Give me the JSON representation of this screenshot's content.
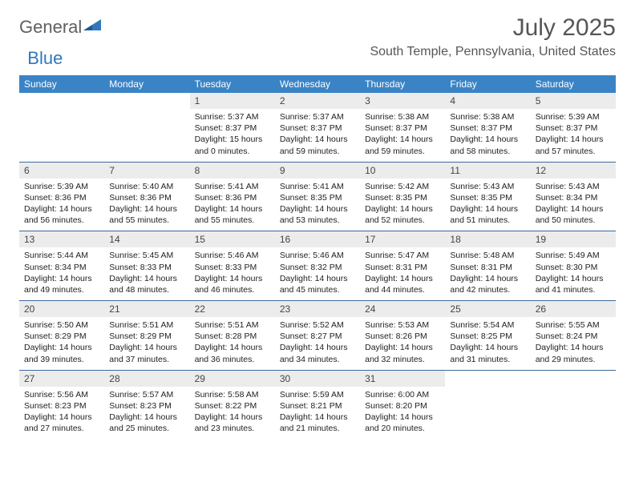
{
  "branding": {
    "logo_general": "General",
    "logo_blue": "Blue",
    "triangle_color": "#2f78bd"
  },
  "header": {
    "month_title": "July 2025",
    "location": "South Temple, Pennsylvania, United States"
  },
  "styling": {
    "header_row_bg": "#3a84c6",
    "header_row_text": "#ffffff",
    "daynum_bg": "#ececec",
    "daynum_text": "#444444",
    "body_text": "#222222",
    "row_border": "#3a6a9a",
    "page_bg": "#ffffff",
    "month_title_fontsize": 30,
    "location_fontsize": 16,
    "weekday_fontsize": 12,
    "daynum_fontsize": 12,
    "body_fontsize": 10.5
  },
  "weekdays": [
    "Sunday",
    "Monday",
    "Tuesday",
    "Wednesday",
    "Thursday",
    "Friday",
    "Saturday"
  ],
  "weeks": [
    [
      {
        "blank": true
      },
      {
        "blank": true
      },
      {
        "day": "1",
        "sunrise": "Sunrise: 5:37 AM",
        "sunset": "Sunset: 8:37 PM",
        "daylight": "Daylight: 15 hours and 0 minutes."
      },
      {
        "day": "2",
        "sunrise": "Sunrise: 5:37 AM",
        "sunset": "Sunset: 8:37 PM",
        "daylight": "Daylight: 14 hours and 59 minutes."
      },
      {
        "day": "3",
        "sunrise": "Sunrise: 5:38 AM",
        "sunset": "Sunset: 8:37 PM",
        "daylight": "Daylight: 14 hours and 59 minutes."
      },
      {
        "day": "4",
        "sunrise": "Sunrise: 5:38 AM",
        "sunset": "Sunset: 8:37 PM",
        "daylight": "Daylight: 14 hours and 58 minutes."
      },
      {
        "day": "5",
        "sunrise": "Sunrise: 5:39 AM",
        "sunset": "Sunset: 8:37 PM",
        "daylight": "Daylight: 14 hours and 57 minutes."
      }
    ],
    [
      {
        "day": "6",
        "sunrise": "Sunrise: 5:39 AM",
        "sunset": "Sunset: 8:36 PM",
        "daylight": "Daylight: 14 hours and 56 minutes."
      },
      {
        "day": "7",
        "sunrise": "Sunrise: 5:40 AM",
        "sunset": "Sunset: 8:36 PM",
        "daylight": "Daylight: 14 hours and 55 minutes."
      },
      {
        "day": "8",
        "sunrise": "Sunrise: 5:41 AM",
        "sunset": "Sunset: 8:36 PM",
        "daylight": "Daylight: 14 hours and 55 minutes."
      },
      {
        "day": "9",
        "sunrise": "Sunrise: 5:41 AM",
        "sunset": "Sunset: 8:35 PM",
        "daylight": "Daylight: 14 hours and 53 minutes."
      },
      {
        "day": "10",
        "sunrise": "Sunrise: 5:42 AM",
        "sunset": "Sunset: 8:35 PM",
        "daylight": "Daylight: 14 hours and 52 minutes."
      },
      {
        "day": "11",
        "sunrise": "Sunrise: 5:43 AM",
        "sunset": "Sunset: 8:35 PM",
        "daylight": "Daylight: 14 hours and 51 minutes."
      },
      {
        "day": "12",
        "sunrise": "Sunrise: 5:43 AM",
        "sunset": "Sunset: 8:34 PM",
        "daylight": "Daylight: 14 hours and 50 minutes."
      }
    ],
    [
      {
        "day": "13",
        "sunrise": "Sunrise: 5:44 AM",
        "sunset": "Sunset: 8:34 PM",
        "daylight": "Daylight: 14 hours and 49 minutes."
      },
      {
        "day": "14",
        "sunrise": "Sunrise: 5:45 AM",
        "sunset": "Sunset: 8:33 PM",
        "daylight": "Daylight: 14 hours and 48 minutes."
      },
      {
        "day": "15",
        "sunrise": "Sunrise: 5:46 AM",
        "sunset": "Sunset: 8:33 PM",
        "daylight": "Daylight: 14 hours and 46 minutes."
      },
      {
        "day": "16",
        "sunrise": "Sunrise: 5:46 AM",
        "sunset": "Sunset: 8:32 PM",
        "daylight": "Daylight: 14 hours and 45 minutes."
      },
      {
        "day": "17",
        "sunrise": "Sunrise: 5:47 AM",
        "sunset": "Sunset: 8:31 PM",
        "daylight": "Daylight: 14 hours and 44 minutes."
      },
      {
        "day": "18",
        "sunrise": "Sunrise: 5:48 AM",
        "sunset": "Sunset: 8:31 PM",
        "daylight": "Daylight: 14 hours and 42 minutes."
      },
      {
        "day": "19",
        "sunrise": "Sunrise: 5:49 AM",
        "sunset": "Sunset: 8:30 PM",
        "daylight": "Daylight: 14 hours and 41 minutes."
      }
    ],
    [
      {
        "day": "20",
        "sunrise": "Sunrise: 5:50 AM",
        "sunset": "Sunset: 8:29 PM",
        "daylight": "Daylight: 14 hours and 39 minutes."
      },
      {
        "day": "21",
        "sunrise": "Sunrise: 5:51 AM",
        "sunset": "Sunset: 8:29 PM",
        "daylight": "Daylight: 14 hours and 37 minutes."
      },
      {
        "day": "22",
        "sunrise": "Sunrise: 5:51 AM",
        "sunset": "Sunset: 8:28 PM",
        "daylight": "Daylight: 14 hours and 36 minutes."
      },
      {
        "day": "23",
        "sunrise": "Sunrise: 5:52 AM",
        "sunset": "Sunset: 8:27 PM",
        "daylight": "Daylight: 14 hours and 34 minutes."
      },
      {
        "day": "24",
        "sunrise": "Sunrise: 5:53 AM",
        "sunset": "Sunset: 8:26 PM",
        "daylight": "Daylight: 14 hours and 32 minutes."
      },
      {
        "day": "25",
        "sunrise": "Sunrise: 5:54 AM",
        "sunset": "Sunset: 8:25 PM",
        "daylight": "Daylight: 14 hours and 31 minutes."
      },
      {
        "day": "26",
        "sunrise": "Sunrise: 5:55 AM",
        "sunset": "Sunset: 8:24 PM",
        "daylight": "Daylight: 14 hours and 29 minutes."
      }
    ],
    [
      {
        "day": "27",
        "sunrise": "Sunrise: 5:56 AM",
        "sunset": "Sunset: 8:23 PM",
        "daylight": "Daylight: 14 hours and 27 minutes."
      },
      {
        "day": "28",
        "sunrise": "Sunrise: 5:57 AM",
        "sunset": "Sunset: 8:23 PM",
        "daylight": "Daylight: 14 hours and 25 minutes."
      },
      {
        "day": "29",
        "sunrise": "Sunrise: 5:58 AM",
        "sunset": "Sunset: 8:22 PM",
        "daylight": "Daylight: 14 hours and 23 minutes."
      },
      {
        "day": "30",
        "sunrise": "Sunrise: 5:59 AM",
        "sunset": "Sunset: 8:21 PM",
        "daylight": "Daylight: 14 hours and 21 minutes."
      },
      {
        "day": "31",
        "sunrise": "Sunrise: 6:00 AM",
        "sunset": "Sunset: 8:20 PM",
        "daylight": "Daylight: 14 hours and 20 minutes."
      },
      {
        "blank": true
      },
      {
        "blank": true
      }
    ]
  ]
}
